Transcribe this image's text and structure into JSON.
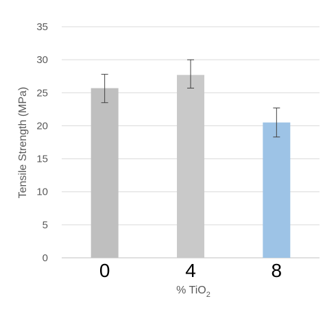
{
  "chart_data": {
    "type": "bar",
    "title": "",
    "categories": [
      "0",
      "4",
      "8"
    ],
    "values": [
      25.7,
      27.7,
      20.5
    ],
    "error_upper": [
      27.8,
      30.0,
      22.7
    ],
    "error_lower": [
      23.5,
      25.7,
      18.3
    ],
    "bar_colors": [
      "#bfbfbf",
      "#c9c9c9",
      "#9dc3e6"
    ],
    "ylabel": "Tensile Strength (MPa)",
    "xlabel_main": "% TiO",
    "xlabel_sub": "2",
    "ylim": [
      0,
      35
    ],
    "yticks": [
      "0",
      "5",
      "10",
      "15",
      "20",
      "25",
      "30",
      "35"
    ],
    "grid": true,
    "legend": "none"
  }
}
